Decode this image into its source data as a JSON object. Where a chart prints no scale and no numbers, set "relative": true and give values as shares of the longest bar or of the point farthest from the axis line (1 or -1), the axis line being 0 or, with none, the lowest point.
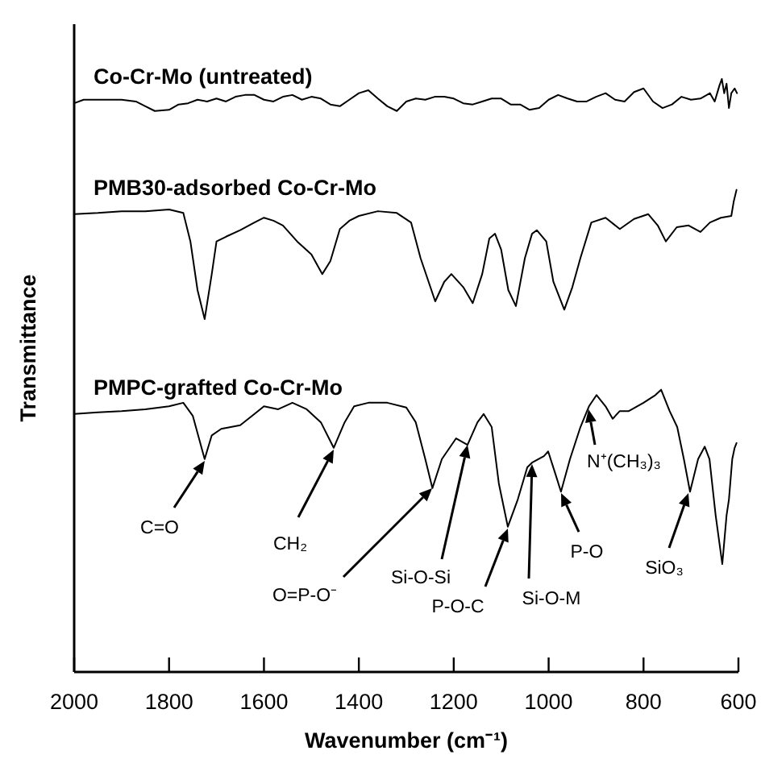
{
  "chart_data": {
    "type": "line",
    "relative": true,
    "xlabel": "Wavenumber (cm⁻¹)",
    "ylabel": "Transmittance",
    "xlim": [
      2000,
      600
    ],
    "xticks": [
      2000,
      1800,
      1600,
      1400,
      1200,
      1000,
      800,
      600
    ],
    "legend": false,
    "series": [
      {
        "name": "Co-Cr-Mo (untreated)",
        "color": "#000000",
        "x": [
          2000,
          1980,
          1950,
          1900,
          1870,
          1850,
          1830,
          1800,
          1780,
          1760,
          1740,
          1720,
          1700,
          1680,
          1660,
          1640,
          1620,
          1600,
          1580,
          1560,
          1540,
          1520,
          1500,
          1480,
          1460,
          1440,
          1420,
          1400,
          1380,
          1360,
          1340,
          1320,
          1300,
          1280,
          1260,
          1240,
          1220,
          1200,
          1180,
          1160,
          1140,
          1120,
          1100,
          1080,
          1060,
          1040,
          1020,
          1000,
          980,
          960,
          940,
          920,
          900,
          880,
          860,
          840,
          820,
          800,
          780,
          760,
          740,
          720,
          700,
          680,
          660,
          650,
          640,
          635,
          630,
          625,
          620,
          615,
          608,
          603
        ],
        "values": [
          0.959,
          0.965,
          0.965,
          0.965,
          0.962,
          0.954,
          0.946,
          0.948,
          0.957,
          0.959,
          0.965,
          0.962,
          0.967,
          0.962,
          0.97,
          0.973,
          0.973,
          0.965,
          0.962,
          0.97,
          0.973,
          0.965,
          0.97,
          0.967,
          0.957,
          0.954,
          0.965,
          0.976,
          0.981,
          0.967,
          0.954,
          0.946,
          0.962,
          0.967,
          0.965,
          0.97,
          0.97,
          0.967,
          0.959,
          0.957,
          0.962,
          0.967,
          0.967,
          0.957,
          0.957,
          0.948,
          0.951,
          0.965,
          0.973,
          0.967,
          0.962,
          0.962,
          0.97,
          0.976,
          0.965,
          0.962,
          0.978,
          0.984,
          0.962,
          0.951,
          0.957,
          0.97,
          0.965,
          0.967,
          0.976,
          0.962,
          0.989,
          1.0,
          0.976,
          0.992,
          0.951,
          0.976,
          0.984,
          0.976
        ]
      },
      {
        "name": "PMB30-adsorbed Co-Cr-Mo",
        "color": "#000000",
        "x": [
          2000,
          1950,
          1900,
          1850,
          1800,
          1770,
          1755,
          1740,
          1725,
          1710,
          1700,
          1680,
          1650,
          1620,
          1600,
          1580,
          1560,
          1530,
          1500,
          1477,
          1460,
          1440,
          1420,
          1400,
          1360,
          1320,
          1290,
          1270,
          1239,
          1220,
          1205,
          1180,
          1160,
          1140,
          1125,
          1113,
          1100,
          1085,
          1069,
          1050,
          1035,
          1025,
          1005,
          990,
          967,
          950,
          933,
          910,
          880,
          850,
          820,
          790,
          770,
          753,
          730,
          705,
          680,
          660,
          637,
          615,
          610,
          604
        ],
        "values": [
          0.772,
          0.774,
          0.777,
          0.777,
          0.78,
          0.774,
          0.726,
          0.644,
          0.595,
          0.671,
          0.726,
          0.734,
          0.745,
          0.758,
          0.766,
          0.761,
          0.753,
          0.726,
          0.704,
          0.671,
          0.693,
          0.747,
          0.761,
          0.769,
          0.777,
          0.774,
          0.758,
          0.698,
          0.625,
          0.658,
          0.671,
          0.649,
          0.622,
          0.671,
          0.731,
          0.739,
          0.712,
          0.644,
          0.617,
          0.698,
          0.739,
          0.745,
          0.726,
          0.658,
          0.611,
          0.649,
          0.698,
          0.758,
          0.766,
          0.747,
          0.764,
          0.772,
          0.753,
          0.726,
          0.75,
          0.753,
          0.742,
          0.758,
          0.766,
          0.769,
          0.793,
          0.813
        ]
      },
      {
        "name": "PMPC-grafted Co-Cr-Mo",
        "color": "#000000",
        "x": [
          2000,
          1950,
          1900,
          1850,
          1800,
          1770,
          1750,
          1725,
          1710,
          1690,
          1650,
          1620,
          1600,
          1570,
          1540,
          1510,
          1480,
          1453,
          1430,
          1410,
          1380,
          1340,
          1300,
          1280,
          1260,
          1245,
          1225,
          1195,
          1171,
          1150,
          1137,
          1120,
          1105,
          1086,
          1065,
          1045,
          1035,
          1010,
          1001,
          985,
          974,
          955,
          933,
          915,
          899,
          880,
          865,
          850,
          831,
          800,
          775,
          763,
          745,
          729,
          715,
          702,
          685,
          671,
          661,
          648,
          634,
          625,
          620,
          613,
          608,
          604
        ],
        "values": [
          0.435,
          0.438,
          0.44,
          0.443,
          0.448,
          0.454,
          0.432,
          0.359,
          0.399,
          0.41,
          0.416,
          0.435,
          0.448,
          0.443,
          0.454,
          0.443,
          0.421,
          0.378,
          0.421,
          0.448,
          0.454,
          0.454,
          0.446,
          0.421,
          0.359,
          0.31,
          0.359,
          0.394,
          0.383,
          0.421,
          0.435,
          0.413,
          0.318,
          0.245,
          0.291,
          0.345,
          0.353,
          0.364,
          0.372,
          0.332,
          0.304,
          0.359,
          0.413,
          0.448,
          0.467,
          0.448,
          0.427,
          0.44,
          0.44,
          0.454,
          0.467,
          0.476,
          0.44,
          0.413,
          0.359,
          0.304,
          0.359,
          0.38,
          0.359,
          0.264,
          0.182,
          0.264,
          0.291,
          0.359,
          0.378,
          0.386
        ]
      }
    ],
    "annotations": [
      "C=O",
      "CH₂",
      "O=P-O⁻",
      "Si-O-Si",
      "P-O-C",
      "Si-O-M",
      "P-O",
      "N⁺(CH₃)₃",
      "SiO₃"
    ]
  }
}
